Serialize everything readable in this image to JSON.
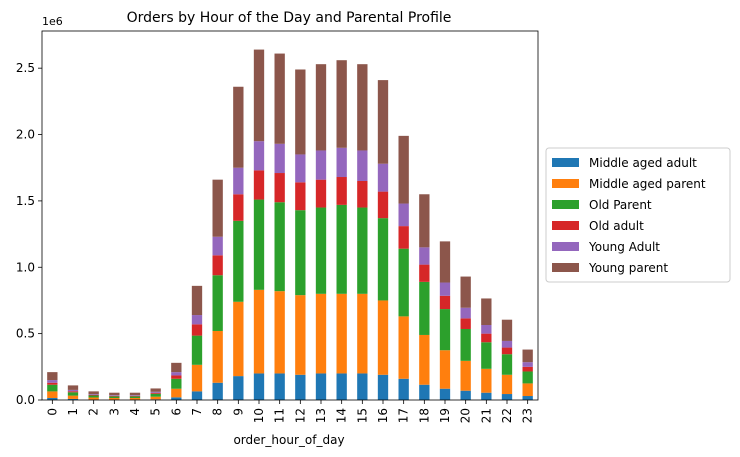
{
  "chart_data": {
    "type": "bar",
    "stacked": true,
    "title": "Orders by Hour of the Day and Parental Profile",
    "xlabel": "order_hour_of_day",
    "ylabel": "",
    "y_offset_label": "1e6",
    "ylim": [
      0,
      2.78
    ],
    "yticks": [
      "0.0",
      "0.5",
      "1.0",
      "1.5",
      "2.0",
      "2.5"
    ],
    "categories": [
      "0",
      "1",
      "2",
      "3",
      "4",
      "5",
      "6",
      "7",
      "8",
      "9",
      "10",
      "11",
      "12",
      "13",
      "14",
      "15",
      "16",
      "17",
      "18",
      "19",
      "20",
      "21",
      "22",
      "23"
    ],
    "grid": false,
    "legend_position": "right",
    "series": [
      {
        "name": "Middle aged adult",
        "color": "#1f77b4",
        "values": [
          0.015,
          0.008,
          0.004,
          0.003,
          0.003,
          0.005,
          0.02,
          0.065,
          0.13,
          0.18,
          0.2,
          0.2,
          0.19,
          0.2,
          0.2,
          0.2,
          0.19,
          0.16,
          0.115,
          0.085,
          0.07,
          0.055,
          0.045,
          0.03
        ]
      },
      {
        "name": "Middle aged parent",
        "color": "#ff7f0e",
        "values": [
          0.05,
          0.025,
          0.015,
          0.012,
          0.012,
          0.02,
          0.065,
          0.2,
          0.39,
          0.56,
          0.63,
          0.62,
          0.6,
          0.6,
          0.6,
          0.6,
          0.56,
          0.47,
          0.375,
          0.29,
          0.225,
          0.18,
          0.145,
          0.095
        ]
      },
      {
        "name": "Old Parent",
        "color": "#2ca02c",
        "values": [
          0.05,
          0.025,
          0.015,
          0.012,
          0.012,
          0.022,
          0.075,
          0.22,
          0.42,
          0.61,
          0.68,
          0.67,
          0.64,
          0.65,
          0.67,
          0.65,
          0.62,
          0.51,
          0.4,
          0.31,
          0.24,
          0.2,
          0.155,
          0.09
        ]
      },
      {
        "name": "Old adult",
        "color": "#d62728",
        "values": [
          0.015,
          0.008,
          0.004,
          0.004,
          0.004,
          0.007,
          0.025,
          0.085,
          0.15,
          0.2,
          0.22,
          0.22,
          0.21,
          0.21,
          0.21,
          0.2,
          0.2,
          0.17,
          0.13,
          0.1,
          0.08,
          0.065,
          0.05,
          0.035
        ]
      },
      {
        "name": "Young Adult",
        "color": "#9467bd",
        "values": [
          0.02,
          0.01,
          0.006,
          0.005,
          0.005,
          0.008,
          0.025,
          0.07,
          0.14,
          0.2,
          0.22,
          0.22,
          0.21,
          0.22,
          0.22,
          0.23,
          0.21,
          0.17,
          0.13,
          0.1,
          0.08,
          0.065,
          0.05,
          0.035
        ]
      },
      {
        "name": "Young parent",
        "color": "#8c564b",
        "values": [
          0.06,
          0.034,
          0.021,
          0.019,
          0.019,
          0.025,
          0.07,
          0.22,
          0.43,
          0.61,
          0.69,
          0.68,
          0.64,
          0.65,
          0.66,
          0.65,
          0.63,
          0.51,
          0.4,
          0.31,
          0.235,
          0.2,
          0.16,
          0.095
        ]
      }
    ]
  }
}
